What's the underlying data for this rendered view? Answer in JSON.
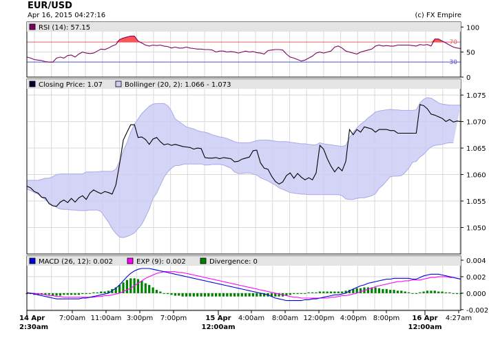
{
  "header": {
    "symbol": "EUR/USD",
    "datetime": "Apr 16, 2015 04:27:16",
    "copyright": "(c) FX Empire"
  },
  "colors": {
    "price_line": "#000000",
    "bollinger_fill": "#ccccf5",
    "bollinger_edge": "#a9a9e6",
    "rsi_line": "#800060",
    "rsi_overbought_fill": "#ff5555",
    "rsi_70_line": "#e06060",
    "rsi_30_line": "#5050d0",
    "macd_line": "#0000dd",
    "exp_line": "#ff00ff",
    "divergence_bar": "#008000",
    "grid": "#d8d8d8",
    "legend_bar": "#e4e4e4"
  },
  "chart_data": [
    {
      "type": "line",
      "panel": "RSI",
      "legend": "RSI (14): 57.15",
      "ylim": [
        0,
        110
      ],
      "yticks": [
        0,
        50,
        100
      ],
      "levels": [
        {
          "value": 70,
          "label": "70"
        },
        {
          "value": 30,
          "label": "30"
        }
      ],
      "series": [
        {
          "name": "RSI (14)",
          "values": [
            40,
            38,
            35,
            34,
            33,
            31,
            30,
            30,
            38,
            40,
            38,
            43,
            44,
            40,
            46,
            50,
            48,
            47,
            48,
            52,
            56,
            55,
            58,
            62,
            65,
            75,
            78,
            80,
            82,
            82,
            72,
            68,
            64,
            62,
            64,
            63,
            64,
            62,
            61,
            58,
            60,
            58,
            58,
            60,
            58,
            57,
            56,
            56,
            55,
            55,
            54,
            50,
            52,
            52,
            50,
            51,
            50,
            48,
            50,
            52,
            50,
            51,
            49,
            48,
            46,
            53,
            54,
            55,
            55,
            54,
            46,
            40,
            38,
            35,
            32,
            34,
            38,
            42,
            48,
            50,
            48,
            50,
            52,
            60,
            62,
            58,
            52,
            50,
            48,
            46,
            50,
            52,
            54,
            56,
            62,
            64,
            62,
            63,
            62,
            62,
            64,
            64,
            64,
            64,
            63,
            62,
            65,
            64,
            65,
            62,
            76,
            76,
            72,
            68,
            64,
            60,
            58,
            57
          ]
        }
      ]
    },
    {
      "type": "line",
      "panel": "price",
      "legend": [
        "Closing Price: 1.07",
        "Bollinger (20, 2): 1.066 - 1.073"
      ],
      "ylim": [
        1.045,
        1.078
      ],
      "yticks": [
        1.05,
        1.055,
        1.06,
        1.065,
        1.07,
        1.075
      ],
      "series": [
        {
          "name": "Closing Price",
          "values": [
            1.0578,
            1.0575,
            1.0568,
            1.0565,
            1.0557,
            1.0556,
            1.0545,
            1.0541,
            1.054,
            1.0548,
            1.0552,
            1.0547,
            1.0555,
            1.0548,
            1.0556,
            1.056,
            1.0553,
            1.0565,
            1.0571,
            1.0567,
            1.0564,
            1.0568,
            1.0566,
            1.0563,
            1.058,
            1.062,
            1.0665,
            1.068,
            1.0694,
            1.0694,
            1.067,
            1.0671,
            1.0666,
            1.0657,
            1.0667,
            1.067,
            1.0662,
            1.0656,
            1.0658,
            1.0655,
            1.0657,
            1.0655,
            1.0653,
            1.0652,
            1.0651,
            1.0648,
            1.065,
            1.0649,
            1.0632,
            1.0631,
            1.0631,
            1.0632,
            1.063,
            1.0632,
            1.0631,
            1.063,
            1.0624,
            1.0625,
            1.0629,
            1.0631,
            1.0633,
            1.0645,
            1.0646,
            1.0622,
            1.0612,
            1.061,
            1.0597,
            1.0587,
            1.0582,
            1.0586,
            1.0598,
            1.0603,
            1.0593,
            1.0602,
            1.0595,
            1.059,
            1.0594,
            1.059,
            1.0603,
            1.0655,
            1.0648,
            1.063,
            1.0616,
            1.0605,
            1.0614,
            1.0607,
            1.0625,
            1.0685,
            1.0675,
            1.0685,
            1.068,
            1.069,
            1.0688,
            1.0686,
            1.068,
            1.0685,
            1.0685,
            1.0685,
            1.0683,
            1.0683,
            1.0678,
            1.0678,
            1.0678,
            1.0678,
            1.0678,
            1.0678,
            1.0732,
            1.073,
            1.0724,
            1.0714,
            1.0712,
            1.0709,
            1.0706,
            1.07,
            1.0704,
            1.0699,
            1.0701,
            1.07
          ]
        },
        {
          "name": "Bollinger upper",
          "values": [
            1.0589,
            1.0589,
            1.0589,
            1.0589,
            1.0591,
            1.0593,
            1.0593,
            1.0596,
            1.06,
            1.0601,
            1.0601,
            1.0601,
            1.0601,
            1.0601,
            1.0601,
            1.0601,
            1.0605,
            1.0605,
            1.0605,
            1.0605,
            1.0606,
            1.0606,
            1.0606,
            1.0606,
            1.061,
            1.0625,
            1.0645,
            1.066,
            1.068,
            1.0695,
            1.0705,
            1.0715,
            1.0722,
            1.0729,
            1.0733,
            1.0734,
            1.0734,
            1.0734,
            1.073,
            1.072,
            1.0705,
            1.07,
            1.0695,
            1.069,
            1.0688,
            1.0686,
            1.0683,
            1.0681,
            1.068,
            1.0678,
            1.0675,
            1.0673,
            1.0671,
            1.067,
            1.0668,
            1.0665,
            1.0662,
            1.066,
            1.066,
            1.066,
            1.066,
            1.0662,
            1.0664,
            1.0665,
            1.0665,
            1.0665,
            1.0664,
            1.0663,
            1.0662,
            1.0662,
            1.0662,
            1.0661,
            1.066,
            1.0659,
            1.0658,
            1.0658,
            1.0657,
            1.0656,
            1.0656,
            1.066,
            1.0658,
            1.0657,
            1.0656,
            1.0655,
            1.0654,
            1.0653,
            1.0655,
            1.067,
            1.068,
            1.0688,
            1.0695,
            1.07,
            1.0707,
            1.0712,
            1.0718,
            1.072,
            1.0721,
            1.0722,
            1.0723,
            1.0722,
            1.0722,
            1.0721,
            1.0721,
            1.0721,
            1.0721,
            1.0722,
            1.0735,
            1.0742,
            1.0745,
            1.0744,
            1.074,
            1.0735,
            1.0733,
            1.0732,
            1.0731,
            1.0731,
            1.0731,
            1.0731
          ]
        },
        {
          "name": "Bollinger lower",
          "values": [
            1.0572,
            1.057,
            1.0566,
            1.0563,
            1.0558,
            1.0552,
            1.0547,
            1.0542,
            1.0538,
            1.0535,
            1.0534,
            1.0534,
            1.0533,
            1.0533,
            1.0532,
            1.0532,
            1.0532,
            1.0533,
            1.0533,
            1.0533,
            1.053,
            1.052,
            1.051,
            1.0498,
            1.0489,
            1.0482,
            1.0481,
            1.0483,
            1.0486,
            1.049,
            1.0498,
            1.0506,
            1.052,
            1.0535,
            1.0555,
            1.0565,
            1.058,
            1.0595,
            1.0605,
            1.0612,
            1.0617,
            1.0617,
            1.0619,
            1.062,
            1.062,
            1.062,
            1.062,
            1.062,
            1.0618,
            1.0618,
            1.0619,
            1.0619,
            1.0619,
            1.0618,
            1.0615,
            1.0612,
            1.0605,
            1.0602,
            1.0602,
            1.0603,
            1.0603,
            1.0601,
            1.0599,
            1.0594,
            1.0591,
            1.0588,
            1.0584,
            1.058,
            1.0575,
            1.0572,
            1.0569,
            1.0566,
            1.0565,
            1.0564,
            1.0563,
            1.0563,
            1.0562,
            1.0562,
            1.0562,
            1.0562,
            1.0562,
            1.0562,
            1.0562,
            1.0562,
            1.0562,
            1.056,
            1.0554,
            1.0553,
            1.0553,
            1.0555,
            1.0556,
            1.0556,
            1.0558,
            1.056,
            1.0564,
            1.0574,
            1.058,
            1.0588,
            1.0596,
            1.0597,
            1.0597,
            1.0598,
            1.0604,
            1.0612,
            1.0623,
            1.0625,
            1.0633,
            1.0638,
            1.0646,
            1.0652,
            1.0655,
            1.0656,
            1.0657,
            1.0659,
            1.066,
            1.066
          ]
        }
      ]
    },
    {
      "type": "line",
      "panel": "MACD",
      "legend": [
        "MACD (26, 12): 0.002",
        "EXP (9): 0.002",
        "Divergence: 0"
      ],
      "ylim": [
        -0.0021,
        0.0045
      ],
      "yticks": [
        -0.002,
        0.0,
        0.002,
        0.004
      ],
      "series": [
        {
          "name": "MACD (26, 12)",
          "values": [
            0.0,
            0.0,
            -0.0001,
            -0.0002,
            -0.0003,
            -0.0004,
            -0.0005,
            -0.0006,
            -0.0007,
            -0.0007,
            -0.0007,
            -0.0007,
            -0.0007,
            -0.0007,
            -0.0007,
            -0.0006,
            -0.0006,
            -0.0005,
            -0.0004,
            -0.0003,
            -0.0002,
            -0.0001,
            0.0,
            0.0003,
            0.0006,
            0.001,
            0.0015,
            0.002,
            0.0024,
            0.0027,
            0.0029,
            0.003,
            0.003,
            0.003,
            0.0029,
            0.0028,
            0.0027,
            0.0026,
            0.0025,
            0.0024,
            0.0023,
            0.0022,
            0.0021,
            0.002,
            0.0019,
            0.0018,
            0.0017,
            0.0016,
            0.0015,
            0.0014,
            0.0013,
            0.0012,
            0.0011,
            0.001,
            0.0009,
            0.0008,
            0.0007,
            0.0006,
            0.0005,
            0.0004,
            0.0003,
            0.0002,
            0.0001,
            0.0,
            -0.0001,
            -0.0002,
            -0.0004,
            -0.0006,
            -0.0007,
            -0.0008,
            -0.0009,
            -0.0009,
            -0.0009,
            -0.0009,
            -0.0009,
            -0.0008,
            -0.0008,
            -0.0007,
            -0.0007,
            -0.0006,
            -0.0005,
            -0.0004,
            -0.0003,
            -0.0002,
            -0.0002,
            -0.0001,
            0.0,
            0.0003,
            0.0005,
            0.0007,
            0.0009,
            0.001,
            0.0012,
            0.0013,
            0.0014,
            0.0015,
            0.0016,
            0.0017,
            0.0017,
            0.0018,
            0.0018,
            0.0018,
            0.0018,
            0.0018,
            0.0017,
            0.0017,
            0.0019,
            0.0021,
            0.0022,
            0.0023,
            0.0023,
            0.0023,
            0.0022,
            0.0021,
            0.002,
            0.0019,
            0.0018,
            0.0017
          ]
        },
        {
          "name": "EXP (9)",
          "values": [
            0.0001,
            0.0,
            0.0,
            -0.0001,
            -0.0001,
            -0.0002,
            -0.0003,
            -0.0003,
            -0.0004,
            -0.0004,
            -0.0005,
            -0.0005,
            -0.0005,
            -0.0005,
            -0.0005,
            -0.0005,
            -0.0005,
            -0.0005,
            -0.0005,
            -0.0004,
            -0.0004,
            -0.0003,
            -0.0003,
            -0.0002,
            -0.0001,
            0.0,
            0.0002,
            0.0004,
            0.0006,
            0.0009,
            0.0012,
            0.0015,
            0.0018,
            0.002,
            0.0022,
            0.0024,
            0.0025,
            0.0026,
            0.0026,
            0.0026,
            0.0026,
            0.0025,
            0.0025,
            0.0024,
            0.0023,
            0.0022,
            0.0021,
            0.002,
            0.0019,
            0.0018,
            0.0017,
            0.0016,
            0.0015,
            0.0014,
            0.0013,
            0.0012,
            0.0011,
            0.001,
            0.0009,
            0.0008,
            0.0007,
            0.0006,
            0.0005,
            0.0004,
            0.0003,
            0.0002,
            0.0001,
            0.0,
            -0.0001,
            -0.0002,
            -0.0003,
            -0.0004,
            -0.0005,
            -0.0005,
            -0.0006,
            -0.0006,
            -0.0006,
            -0.0006,
            -0.0006,
            -0.0006,
            -0.0006,
            -0.0006,
            -0.0005,
            -0.0005,
            -0.0004,
            -0.0003,
            -0.0003,
            -0.0002,
            -0.0001,
            0.0,
            0.0002,
            0.0003,
            0.0005,
            0.0006,
            0.0008,
            0.0009,
            0.001,
            0.0011,
            0.0012,
            0.0013,
            0.0014,
            0.0014,
            0.0015,
            0.0015,
            0.0016,
            0.0016,
            0.0016,
            0.0017,
            0.0018,
            0.0019,
            0.0019,
            0.002,
            0.002,
            0.002,
            0.0019,
            0.0019,
            0.0018,
            0.0017
          ]
        }
      ],
      "divergence": [
        -0.0001,
        -0.0001,
        -0.0002,
        -0.0002,
        -0.0002,
        -0.0002,
        -0.0002,
        -0.0003,
        -0.0003,
        -0.0003,
        -0.0002,
        -0.0002,
        -0.0002,
        -0.0002,
        -0.0002,
        -0.0001,
        -0.0001,
        0.0,
        0.0001,
        0.0001,
        0.0002,
        0.0002,
        0.0003,
        0.0005,
        0.0007,
        0.001,
        0.0013,
        0.0016,
        0.0018,
        0.0018,
        0.0017,
        0.0015,
        0.0012,
        0.001,
        0.0007,
        0.0004,
        0.0002,
        0.0,
        -0.0001,
        -0.0002,
        -0.0003,
        -0.0003,
        -0.0004,
        -0.0004,
        -0.0004,
        -0.0004,
        -0.0004,
        -0.0004,
        -0.0004,
        -0.0004,
        -0.0004,
        -0.0004,
        -0.0004,
        -0.0004,
        -0.0004,
        -0.0004,
        -0.0004,
        -0.0004,
        -0.0004,
        -0.0004,
        -0.0004,
        -0.0004,
        -0.0004,
        -0.0004,
        -0.0004,
        -0.0004,
        -0.0004,
        -0.0004,
        -0.0004,
        -0.0004,
        -0.0003,
        -0.0002,
        -0.0001,
        -0.0001,
        0.0,
        0.0,
        0.0001,
        0.0001,
        0.0001,
        0.0002,
        0.0002,
        0.0002,
        0.0002,
        0.0002,
        0.0002,
        0.0002,
        0.0003,
        0.0004,
        0.0005,
        0.0006,
        0.0006,
        0.0007,
        0.0007,
        0.0007,
        0.0007,
        0.0006,
        0.0005,
        0.0005,
        0.0004,
        0.0004,
        0.0003,
        0.0003,
        0.0002,
        0.0001,
        0.0,
        0.0,
        0.0001,
        0.0002,
        0.0003,
        0.0003,
        0.0003,
        0.0002,
        0.0002,
        0.0001,
        0.0001,
        0.0,
        -0.0001,
        -0.0001
      ]
    },
    {
      "type": "table",
      "panel": "x-axis",
      "tick_labels": [
        "14 Apr",
        "7:00am",
        "11:00am",
        "3:00pm",
        "7:00pm",
        "15 Apr",
        "4:00am",
        "8:00am",
        "12:00pm",
        "4:00pm",
        "8:00pm",
        "16 Apr",
        "4:27am"
      ],
      "tick_sublabels": [
        "2:30am",
        "",
        "",
        "",
        "",
        "12:00am",
        "",
        "",
        "",
        "",
        "",
        "12:00am",
        ""
      ],
      "bold": [
        true,
        false,
        false,
        false,
        false,
        true,
        false,
        false,
        false,
        false,
        false,
        true,
        false
      ]
    }
  ]
}
